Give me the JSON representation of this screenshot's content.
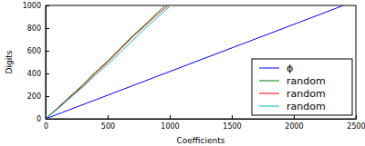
{
  "chart_data": {
    "type": "line",
    "x_label": "Coefficients",
    "y_label": "Digits",
    "xlim": [
      0,
      2500
    ],
    "ylim": [
      0,
      1000
    ],
    "xticks": [
      0,
      500,
      1000,
      1500,
      2000,
      2500
    ],
    "yticks": [
      0,
      200,
      400,
      600,
      800,
      1000
    ],
    "legend": "lower right",
    "series": [
      {
        "name": "ϕ",
        "color": "#0000ff",
        "x": [
          0,
          500,
          1000,
          1500,
          2000,
          2400
        ],
        "values": [
          0,
          208,
          417,
          625,
          833,
          1000
        ]
      },
      {
        "name": "random",
        "color": "#008000",
        "x": [
          0,
          100,
          200,
          300,
          400,
          500,
          600,
          700,
          800,
          900,
          965
        ],
        "values": [
          0,
          100,
          200,
          300,
          410,
          510,
          620,
          730,
          830,
          935,
          1000
        ]
      },
      {
        "name": "random",
        "color": "#ff0000",
        "x": [
          0,
          100,
          200,
          300,
          400,
          500,
          600,
          700,
          800,
          900,
          990
        ],
        "values": [
          0,
          95,
          195,
          290,
          400,
          500,
          610,
          720,
          820,
          920,
          1000
        ]
      },
      {
        "name": "random",
        "color": "#00bfbf",
        "x": [
          0,
          100,
          200,
          300,
          400,
          500,
          600,
          700,
          800,
          900,
          1000
        ],
        "values": [
          0,
          90,
          185,
          280,
          385,
          480,
          585,
          690,
          795,
          895,
          990
        ]
      }
    ]
  }
}
